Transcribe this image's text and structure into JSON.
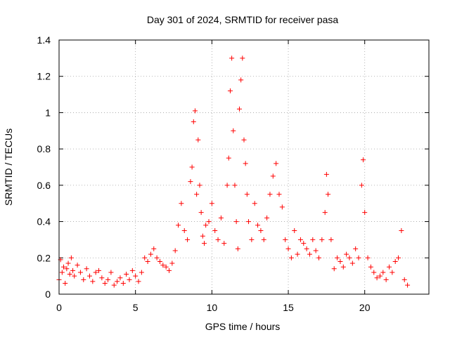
{
  "chart_data": {
    "type": "scatter",
    "title": "Day 301 of 2024, SRMTID for receiver pasa",
    "xlabel": "GPS time / hours",
    "ylabel": "SRMTID / TECUs",
    "xlim": [
      0,
      24.2
    ],
    "ylim": [
      0,
      1.4
    ],
    "xticks": [
      0,
      5,
      10,
      15,
      20
    ],
    "xtick_labels": [
      "0",
      "5",
      "10",
      "15",
      "20"
    ],
    "yticks": [
      0,
      0.2,
      0.4,
      0.6,
      0.8,
      1,
      1.2,
      1.4
    ],
    "ytick_labels": [
      "0",
      "0.2",
      "0.4",
      "0.6",
      "0.8",
      "1",
      "1.2",
      "1.4"
    ],
    "grid": true,
    "marker": "+",
    "series": [
      {
        "name": "pasa",
        "color": "#ff0000",
        "x": [
          0.0,
          0.1,
          0.2,
          0.3,
          0.4,
          0.5,
          0.6,
          0.7,
          0.8,
          0.9,
          1.0,
          1.2,
          1.4,
          1.6,
          1.8,
          2.0,
          2.2,
          2.4,
          2.6,
          2.8,
          3.0,
          3.2,
          3.4,
          3.6,
          3.8,
          4.0,
          4.2,
          4.4,
          4.6,
          4.8,
          5.0,
          5.2,
          5.4,
          5.6,
          5.8,
          6.0,
          6.2,
          6.4,
          6.6,
          6.8,
          7.0,
          7.2,
          7.4,
          7.6,
          7.8,
          8.0,
          8.2,
          8.4,
          8.6,
          8.7,
          8.8,
          8.9,
          9.0,
          9.1,
          9.2,
          9.3,
          9.4,
          9.5,
          9.6,
          9.8,
          10.0,
          10.2,
          10.4,
          10.6,
          10.8,
          11.0,
          11.1,
          11.2,
          11.3,
          11.4,
          11.5,
          11.6,
          11.7,
          11.8,
          11.9,
          12.0,
          12.1,
          12.2,
          12.3,
          12.4,
          12.6,
          12.8,
          13.0,
          13.2,
          13.4,
          13.6,
          13.8,
          14.0,
          14.2,
          14.4,
          14.6,
          14.8,
          15.0,
          15.2,
          15.4,
          15.6,
          15.8,
          16.0,
          16.2,
          16.4,
          16.6,
          16.8,
          17.0,
          17.2,
          17.4,
          17.5,
          17.6,
          17.8,
          18.0,
          18.2,
          18.4,
          18.6,
          18.8,
          19.0,
          19.2,
          19.4,
          19.6,
          19.8,
          19.9,
          20.0,
          20.2,
          20.4,
          20.6,
          20.8,
          21.0,
          21.2,
          21.4,
          21.6,
          21.8,
          22.0,
          22.2,
          22.4,
          22.6,
          22.8
        ],
        "y": [
          0.08,
          0.19,
          0.12,
          0.15,
          0.06,
          0.14,
          0.17,
          0.11,
          0.2,
          0.13,
          0.1,
          0.16,
          0.12,
          0.08,
          0.14,
          0.1,
          0.07,
          0.12,
          0.13,
          0.09,
          0.06,
          0.08,
          0.12,
          0.05,
          0.07,
          0.09,
          0.06,
          0.11,
          0.08,
          0.13,
          0.1,
          0.07,
          0.12,
          0.2,
          0.18,
          0.22,
          0.25,
          0.2,
          0.18,
          0.16,
          0.15,
          0.13,
          0.17,
          0.24,
          0.38,
          0.5,
          0.35,
          0.3,
          0.62,
          0.7,
          0.95,
          1.01,
          0.55,
          0.85,
          0.6,
          0.45,
          0.32,
          0.28,
          0.38,
          0.4,
          0.5,
          0.35,
          0.3,
          0.42,
          0.28,
          0.6,
          0.75,
          1.12,
          1.3,
          0.9,
          0.6,
          0.4,
          0.25,
          1.02,
          1.18,
          1.3,
          0.85,
          0.72,
          0.55,
          0.4,
          0.3,
          0.5,
          0.38,
          0.35,
          0.3,
          0.42,
          0.55,
          0.65,
          0.72,
          0.55,
          0.48,
          0.3,
          0.25,
          0.2,
          0.35,
          0.22,
          0.3,
          0.28,
          0.25,
          0.22,
          0.3,
          0.24,
          0.2,
          0.3,
          0.45,
          0.66,
          0.55,
          0.3,
          0.14,
          0.2,
          0.18,
          0.15,
          0.22,
          0.2,
          0.17,
          0.25,
          0.2,
          0.6,
          0.74,
          0.45,
          0.2,
          0.15,
          0.12,
          0.09,
          0.1,
          0.12,
          0.08,
          0.15,
          0.12,
          0.18,
          0.2,
          0.35,
          0.08,
          0.05
        ]
      }
    ]
  }
}
